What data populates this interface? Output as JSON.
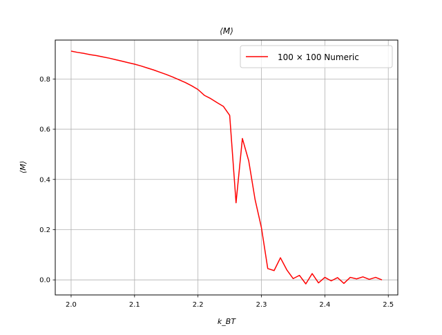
{
  "chart_data": {
    "type": "line",
    "title": "⟨M⟩",
    "xlabel": "k_BT",
    "ylabel": "⟨M⟩",
    "xlim": [
      1.975,
      2.515
    ],
    "ylim": [
      -0.06,
      0.955
    ],
    "xticks": [
      2.0,
      2.1,
      2.2,
      2.3,
      2.4,
      2.5
    ],
    "xtick_labels": [
      "2.0",
      "2.1",
      "2.2",
      "2.3",
      "2.4",
      "2.5"
    ],
    "yticks": [
      0.0,
      0.2,
      0.4,
      0.6,
      0.8
    ],
    "ytick_labels": [
      "0.0",
      "0.2",
      "0.4",
      "0.6",
      "0.8"
    ],
    "grid": true,
    "legend_position": "top-right",
    "series": [
      {
        "name": "100 × 100 Numeric",
        "color": "#ff0000",
        "x": [
          2.0,
          2.01,
          2.02,
          2.03,
          2.04,
          2.05,
          2.06,
          2.07,
          2.08,
          2.09,
          2.1,
          2.11,
          2.12,
          2.13,
          2.14,
          2.15,
          2.16,
          2.17,
          2.18,
          2.19,
          2.2,
          2.21,
          2.22,
          2.23,
          2.24,
          2.25,
          2.26,
          2.27,
          2.28,
          2.29,
          2.3,
          2.31,
          2.32,
          2.33,
          2.34,
          2.35,
          2.36,
          2.37,
          2.38,
          2.39,
          2.4,
          2.41,
          2.42,
          2.43,
          2.44,
          2.45,
          2.46,
          2.47,
          2.48,
          2.49
        ],
        "y": [
          0.911,
          0.906,
          0.902,
          0.897,
          0.893,
          0.888,
          0.883,
          0.877,
          0.871,
          0.865,
          0.859,
          0.852,
          0.844,
          0.836,
          0.827,
          0.818,
          0.808,
          0.797,
          0.786,
          0.773,
          0.758,
          0.735,
          0.722,
          0.706,
          0.691,
          0.655,
          0.307,
          0.563,
          0.474,
          0.32,
          0.208,
          0.045,
          0.037,
          0.088,
          0.04,
          0.005,
          0.018,
          -0.016,
          0.025,
          -0.012,
          0.01,
          -0.004,
          0.009,
          -0.014,
          0.01,
          0.004,
          0.012,
          0.002,
          0.01,
          0.0
        ]
      }
    ]
  }
}
